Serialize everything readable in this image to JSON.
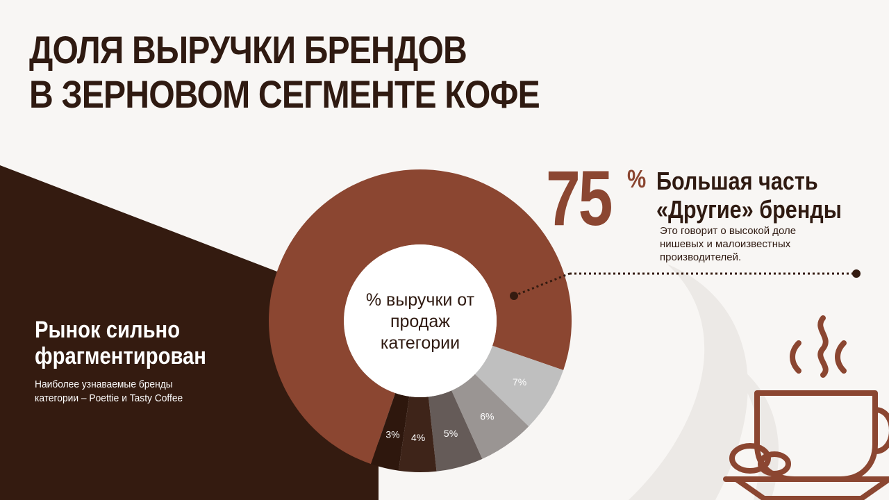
{
  "title": {
    "line1": "ДОЛЯ ВЫРУЧКИ БРЕНДОВ",
    "line2": "В ЗЕРНОВОМ СЕГМЕНТЕ КОФЕ"
  },
  "left_note": {
    "heading_line1": "Рынок сильно",
    "heading_line2": "фрагментирован",
    "sub_line1": "Наиболее узнаваемые бренды",
    "sub_line2": "категории – Poettie и Tasty Coffee"
  },
  "callout": {
    "value": "75",
    "percent_sign": "%",
    "heading_line1": "Большая часть",
    "heading_line2": "«Другие» бренды",
    "sub_line1": "Это говорит о высокой доле",
    "sub_line2": "нишевых и малоизвестных",
    "sub_line3": "производителей."
  },
  "colors": {
    "background": "#f8f6f4",
    "dark_brown": "#341b10",
    "accent": "#8b4631",
    "text_dark": "#2f1a11"
  },
  "icons": [
    "coffee-cup-icon"
  ],
  "chart_data": {
    "type": "donut",
    "center_label_lines": [
      "% выручки от",
      "продаж",
      "категории"
    ],
    "slices": [
      {
        "value": 75,
        "label": "",
        "color": "#8b4631"
      },
      {
        "value": 7,
        "label": "7%",
        "color": "#bfbfbf"
      },
      {
        "value": 6,
        "label": "6%",
        "color": "#9a9593"
      },
      {
        "value": 5,
        "label": "5%",
        "color": "#655b58"
      },
      {
        "value": 4,
        "label": "4%",
        "color": "#3e2419"
      },
      {
        "value": 3,
        "label": "3%",
        "color": "#2e170d"
      }
    ],
    "legend": "none"
  }
}
